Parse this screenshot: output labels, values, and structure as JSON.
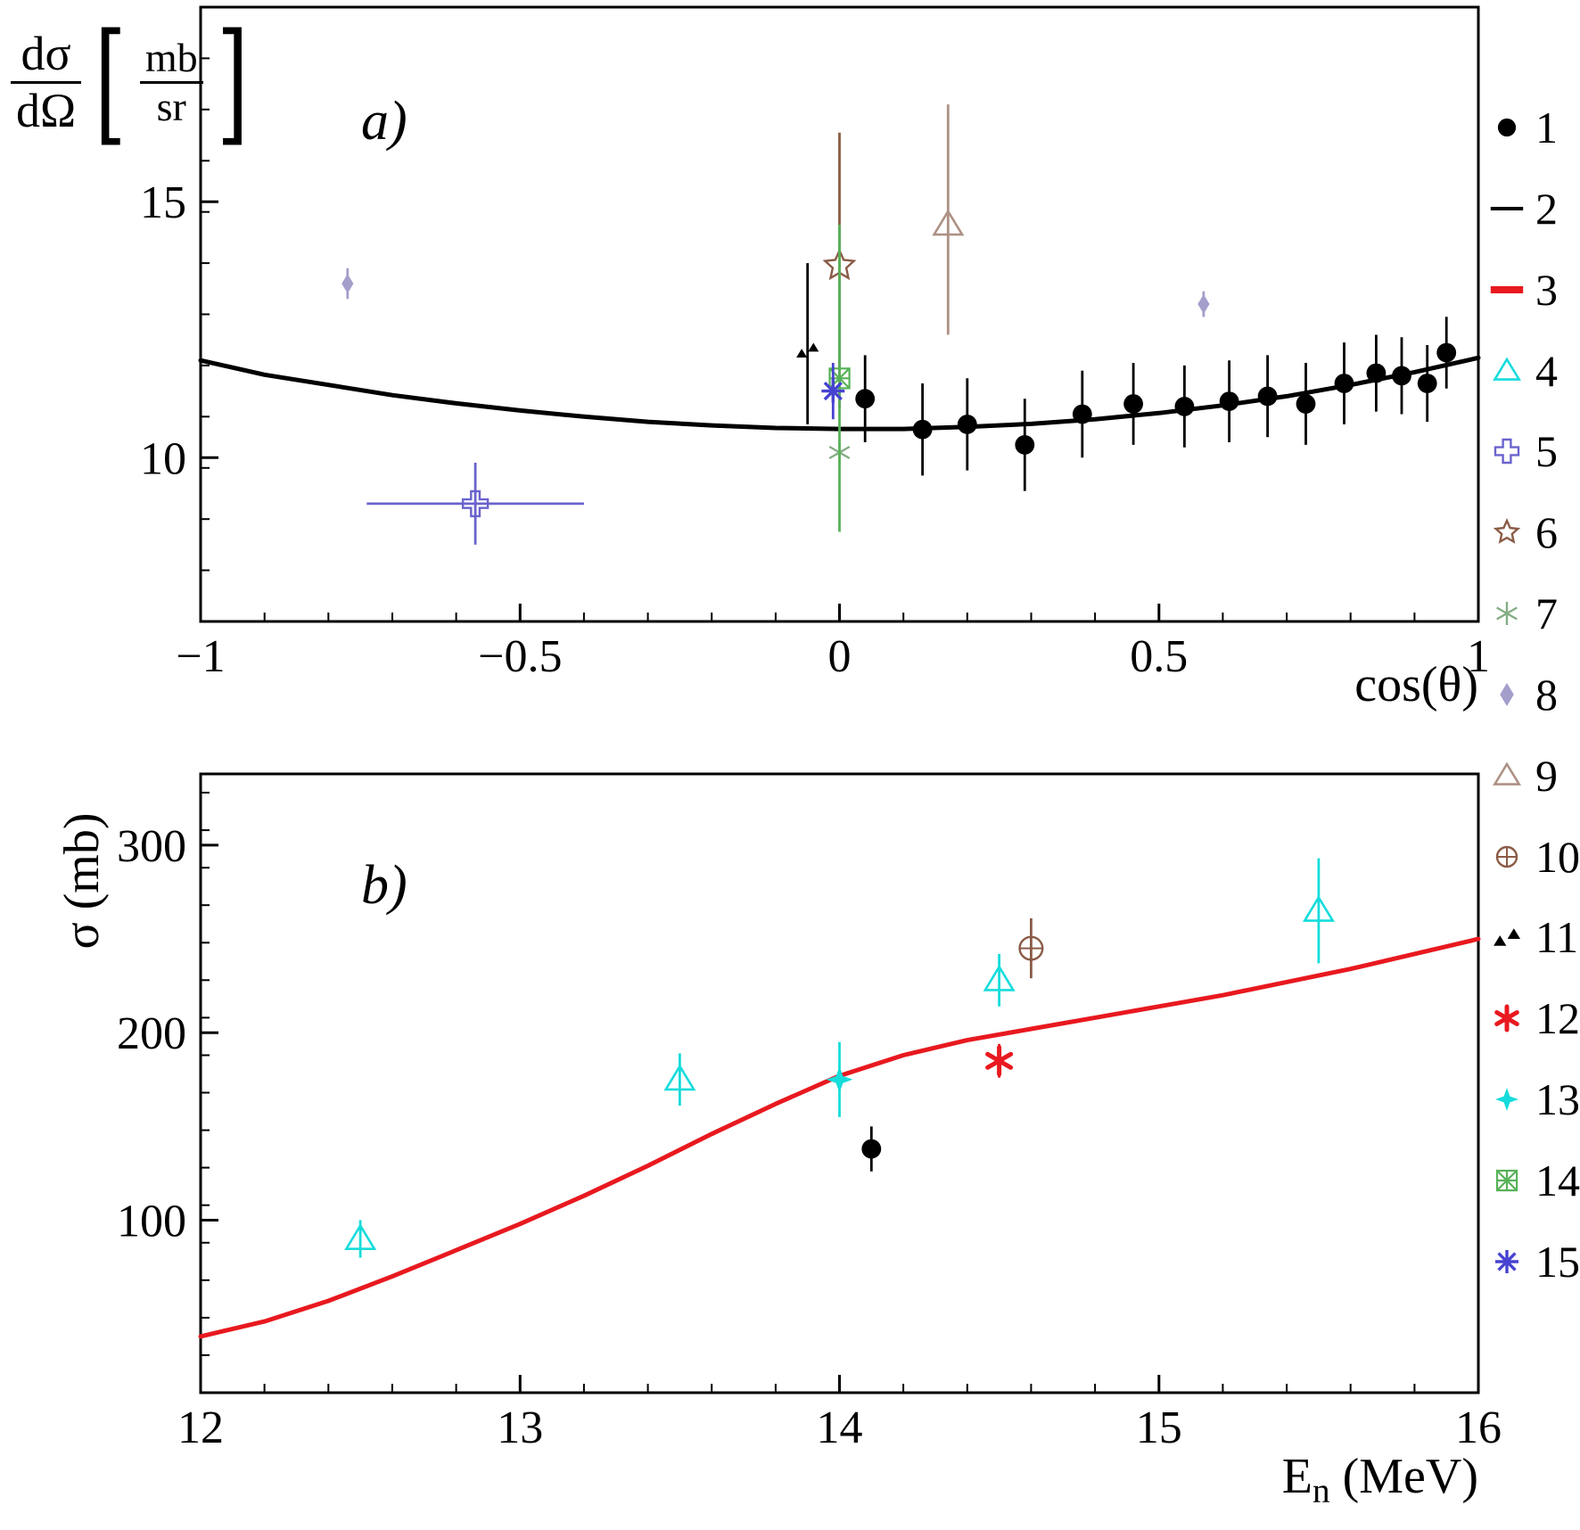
{
  "figure": {
    "background": "#ffffff",
    "axis_color": "#000000"
  },
  "panel_a": {
    "label": "a)",
    "xlabel": "cos(θ)",
    "ylabel": {
      "num": "dσ",
      "den": "dΩ",
      "unit_num": "mb",
      "unit_den": "sr"
    }
  },
  "panel_b": {
    "label": "b)",
    "ylabel": "σ (mb)",
    "xlabel_main": "E",
    "xlabel_sub": "n",
    "xlabel_unit": " (MeV)"
  },
  "legend": {
    "items": [
      {
        "label": "1",
        "marker": "filled-circle",
        "color": "#000000"
      },
      {
        "label": "2",
        "marker": "hline",
        "color": "#000000"
      },
      {
        "label": "3",
        "marker": "hline-thick",
        "color": "#e8191f"
      },
      {
        "label": "4",
        "marker": "open-triangle",
        "color": "#16dcdc"
      },
      {
        "label": "5",
        "marker": "open-cross",
        "color": "#6a63cd"
      },
      {
        "label": "6",
        "marker": "open-star",
        "color": "#8a5b46"
      },
      {
        "label": "7",
        "marker": "asterisk",
        "color": "#85ad85"
      },
      {
        "label": "8",
        "marker": "diamond",
        "color": "#a49ecb"
      },
      {
        "label": "9",
        "marker": "open-triangle",
        "color": "#ad9184"
      },
      {
        "label": "10",
        "marker": "circle-plus",
        "color": "#8a5b46"
      },
      {
        "label": "11",
        "marker": "double-triangle",
        "color": "#000000"
      },
      {
        "label": "12",
        "marker": "thick-asterisk",
        "color": "#e8191f"
      },
      {
        "label": "13",
        "marker": "four-star",
        "color": "#16dcdc"
      },
      {
        "label": "14",
        "marker": "square-asterisk",
        "color": "#57b257"
      },
      {
        "label": "15",
        "marker": "asterisk-8",
        "color": "#4743d0"
      }
    ]
  },
  "chart_data": [
    {
      "type": "scatter",
      "panel": "a",
      "title": "",
      "xlabel": "cos(θ)",
      "ylabel": "dσ/dΩ [mb/sr]",
      "xlim": [
        -1,
        1
      ],
      "ylim": [
        6.8,
        18.8
      ],
      "xticks": [
        -1,
        -0.5,
        0,
        0.5,
        1
      ],
      "xtick_labels": [
        "−1",
        "−0.5",
        "0",
        "0.5",
        "1"
      ],
      "yticks": [
        10,
        15
      ],
      "ytick_labels": [
        "10",
        "15"
      ],
      "x_minor_step": 0.1,
      "y_minor_step": 1,
      "grid": false,
      "curves": [
        {
          "legend": "2",
          "color": "#000000",
          "width": 5,
          "points": [
            [
              -1,
              11.9
            ],
            [
              -0.9,
              11.62
            ],
            [
              -0.8,
              11.42
            ],
            [
              -0.7,
              11.22
            ],
            [
              -0.6,
              11.06
            ],
            [
              -0.5,
              10.92
            ],
            [
              -0.4,
              10.8
            ],
            [
              -0.3,
              10.7
            ],
            [
              -0.2,
              10.63
            ],
            [
              -0.1,
              10.58
            ],
            [
              0,
              10.56
            ],
            [
              0.1,
              10.56
            ],
            [
              0.2,
              10.6
            ],
            [
              0.3,
              10.66
            ],
            [
              0.4,
              10.75
            ],
            [
              0.5,
              10.87
            ],
            [
              0.6,
              11.02
            ],
            [
              0.7,
              11.2
            ],
            [
              0.8,
              11.42
            ],
            [
              0.9,
              11.67
            ],
            [
              1,
              11.95
            ]
          ]
        }
      ],
      "series": [
        {
          "legend": "1",
          "marker": "filled-circle",
          "color": "#000000",
          "points": [
            {
              "x": 0.04,
              "y": 11.15,
              "yerr": 0.85
            },
            {
              "x": 0.13,
              "y": 10.55,
              "yerr": 0.9
            },
            {
              "x": 0.2,
              "y": 10.65,
              "yerr": 0.9
            },
            {
              "x": 0.29,
              "y": 10.25,
              "yerr": 0.9
            },
            {
              "x": 0.38,
              "y": 10.85,
              "yerr": 0.85
            },
            {
              "x": 0.46,
              "y": 11.05,
              "yerr": 0.8
            },
            {
              "x": 0.54,
              "y": 11.0,
              "yerr": 0.8
            },
            {
              "x": 0.61,
              "y": 11.1,
              "yerr": 0.8
            },
            {
              "x": 0.67,
              "y": 11.2,
              "yerr": 0.8
            },
            {
              "x": 0.73,
              "y": 11.05,
              "yerr": 0.8
            },
            {
              "x": 0.79,
              "y": 11.45,
              "yerr": 0.8
            },
            {
              "x": 0.84,
              "y": 11.65,
              "yerr": 0.75
            },
            {
              "x": 0.88,
              "y": 11.6,
              "yerr": 0.75
            },
            {
              "x": 0.92,
              "y": 11.45,
              "yerr": 0.75
            },
            {
              "x": 0.95,
              "y": 12.05,
              "yerr": 0.7
            }
          ]
        },
        {
          "legend": "5",
          "marker": "open-cross",
          "color": "#6a63cd",
          "points": [
            {
              "x": -0.57,
              "y": 9.1,
              "yerr": 0.8,
              "xerr": 0.17
            }
          ]
        },
        {
          "legend": "6",
          "marker": "open-star",
          "color": "#8a5b46",
          "points": [
            {
              "x": 0,
              "y": 13.75,
              "yerr": [
                2.8,
                2.6
              ]
            }
          ]
        },
        {
          "legend": "7",
          "marker": "asterisk",
          "color": "#85ad85",
          "points": [
            {
              "x": 0,
              "y": 10.1
            }
          ]
        },
        {
          "legend": "8",
          "marker": "diamond",
          "color": "#a49ecb",
          "points": [
            {
              "x": -0.77,
              "y": 13.4,
              "yerr": 0.3
            },
            {
              "x": 0.57,
              "y": 13.0,
              "yerr": 0.25
            }
          ]
        },
        {
          "legend": "9",
          "marker": "open-triangle",
          "color": "#ad9184",
          "points": [
            {
              "x": 0.17,
              "y": 14.55,
              "yerr": [
                2.15,
                2.35
              ]
            }
          ]
        },
        {
          "legend": "11",
          "marker": "double-triangle",
          "color": "#000000",
          "points": [
            {
              "x": -0.05,
              "y": 12.1,
              "yerr": [
                1.45,
                1.7
              ]
            }
          ]
        },
        {
          "legend": "14",
          "marker": "square-asterisk",
          "color": "#57b257",
          "points": [
            {
              "x": 0,
              "y": 11.55,
              "yerr": 3.0
            }
          ]
        },
        {
          "legend": "15",
          "marker": "asterisk-8",
          "color": "#4743d0",
          "points": [
            {
              "x": -0.01,
              "y": 11.3,
              "yerr": 0.55
            }
          ]
        }
      ]
    },
    {
      "type": "scatter",
      "panel": "b",
      "title": "",
      "xlabel": "En (MeV)",
      "ylabel": "σ (mb)",
      "xlim": [
        12,
        16
      ],
      "ylim": [
        8,
        338
      ],
      "xticks": [
        12,
        13,
        14,
        15,
        16
      ],
      "xtick_labels": [
        "12",
        "13",
        "14",
        "15",
        "16"
      ],
      "yticks": [
        100,
        200,
        300
      ],
      "ytick_labels": [
        "100",
        "200",
        "300"
      ],
      "x_minor_step": 0.2,
      "y_minor_step": 20,
      "grid": false,
      "curves": [
        {
          "legend": "3",
          "color": "#e8191f",
          "width": 5,
          "points": [
            [
              12,
              38
            ],
            [
              12.2,
              46
            ],
            [
              12.4,
              57
            ],
            [
              12.6,
              70
            ],
            [
              12.8,
              84
            ],
            [
              13,
              98
            ],
            [
              13.2,
              113
            ],
            [
              13.4,
              129
            ],
            [
              13.6,
              146
            ],
            [
              13.8,
              162
            ],
            [
              14,
              177
            ],
            [
              14.2,
              188
            ],
            [
              14.4,
              196
            ],
            [
              14.6,
              202
            ],
            [
              14.8,
              208
            ],
            [
              15,
              214
            ],
            [
              15.2,
              220
            ],
            [
              15.4,
              227
            ],
            [
              15.6,
              234
            ],
            [
              15.8,
              242
            ],
            [
              16,
              250
            ]
          ]
        }
      ],
      "series": [
        {
          "legend": "4",
          "marker": "open-triangle",
          "color": "#16dcdc",
          "points": [
            {
              "x": 12.5,
              "y": 90,
              "yerr": 10
            },
            {
              "x": 13.5,
              "y": 175,
              "yerr": 14
            },
            {
              "x": 14.5,
              "y": 228,
              "yerr": 14
            },
            {
              "x": 15.5,
              "y": 265,
              "yerr": 28
            }
          ]
        },
        {
          "legend": "13",
          "marker": "four-star",
          "color": "#16dcdc",
          "points": [
            {
              "x": 14.0,
              "y": 175,
              "yerr": 20
            }
          ]
        },
        {
          "legend": "1",
          "marker": "filled-circle",
          "color": "#000000",
          "points": [
            {
              "x": 14.1,
              "y": 138,
              "yerr": 12
            }
          ]
        },
        {
          "legend": "12",
          "marker": "thick-asterisk",
          "color": "#e8191f",
          "points": [
            {
              "x": 14.5,
              "y": 185,
              "yerr": 9
            }
          ]
        },
        {
          "legend": "10",
          "marker": "circle-plus",
          "color": "#8a5b46",
          "points": [
            {
              "x": 14.6,
              "y": 245,
              "yerr": 16
            }
          ]
        }
      ]
    }
  ]
}
